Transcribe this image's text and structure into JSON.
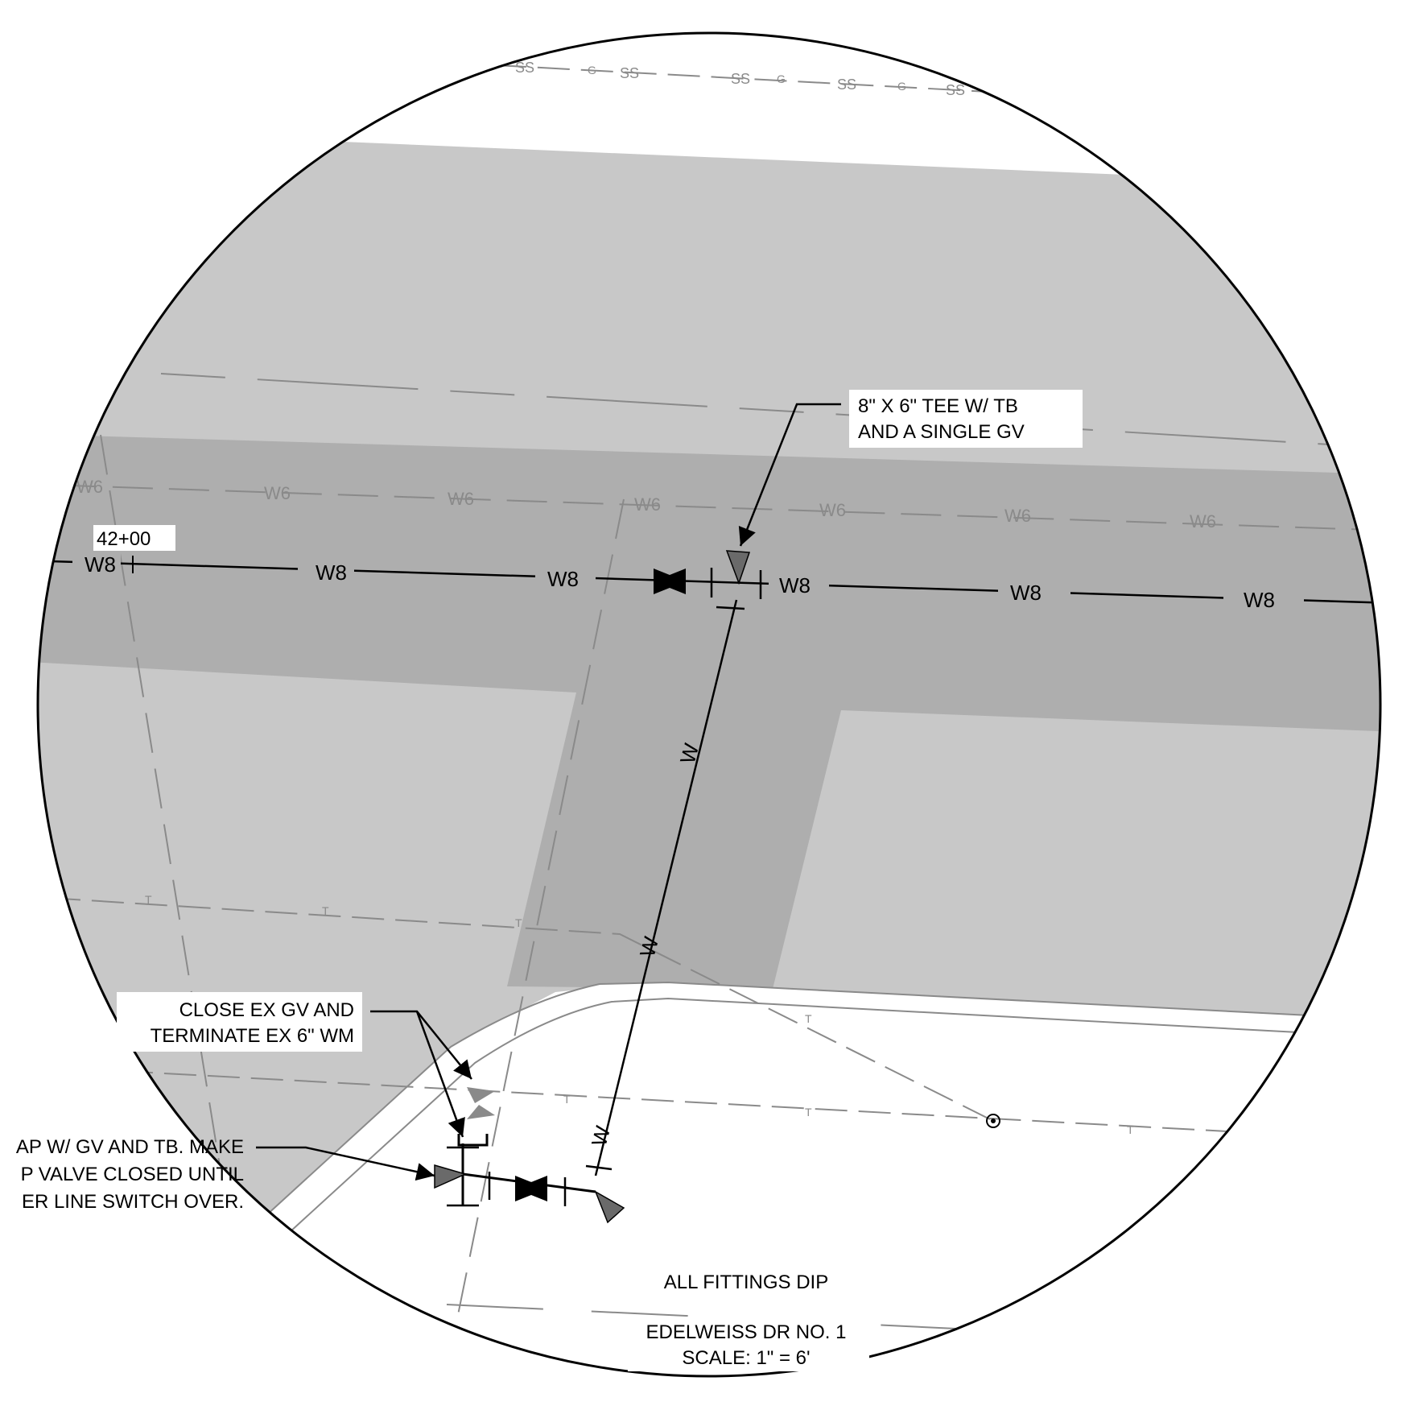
{
  "callouts": {
    "tee": [
      "8\" X 6\" TEE W/ TB",
      "AND A SINGLE GV"
    ],
    "close": [
      "CLOSE EX GV AND",
      "TERMINATE EX 6\" WM"
    ],
    "cap": [
      "AP W/ GV AND TB. MAKE",
      "P VALVE CLOSED UNTIL",
      "ER LINE SWITCH OVER."
    ]
  },
  "station": "42+00",
  "notes": {
    "fittings": "ALL FITTINGS DIP",
    "title": "EDELWEISS DR NO. 1",
    "scale": "SCALE: 1\" = 6'"
  },
  "line_labels": {
    "water_main_new": "W8",
    "water_main_existing": "W6",
    "water_branch": "W",
    "sanitary": "SS",
    "gas": "G",
    "telecom": "T"
  },
  "colors": {
    "pavement_light": "#c8c8c8",
    "pavement_dark": "#aeaeae",
    "existing_utility": "#8a8a8a",
    "symbol_gray": "#6a6a6a"
  },
  "icons": [
    "gate-valve-icon",
    "thrust-block-icon",
    "manhole-icon",
    "cap-icon"
  ]
}
